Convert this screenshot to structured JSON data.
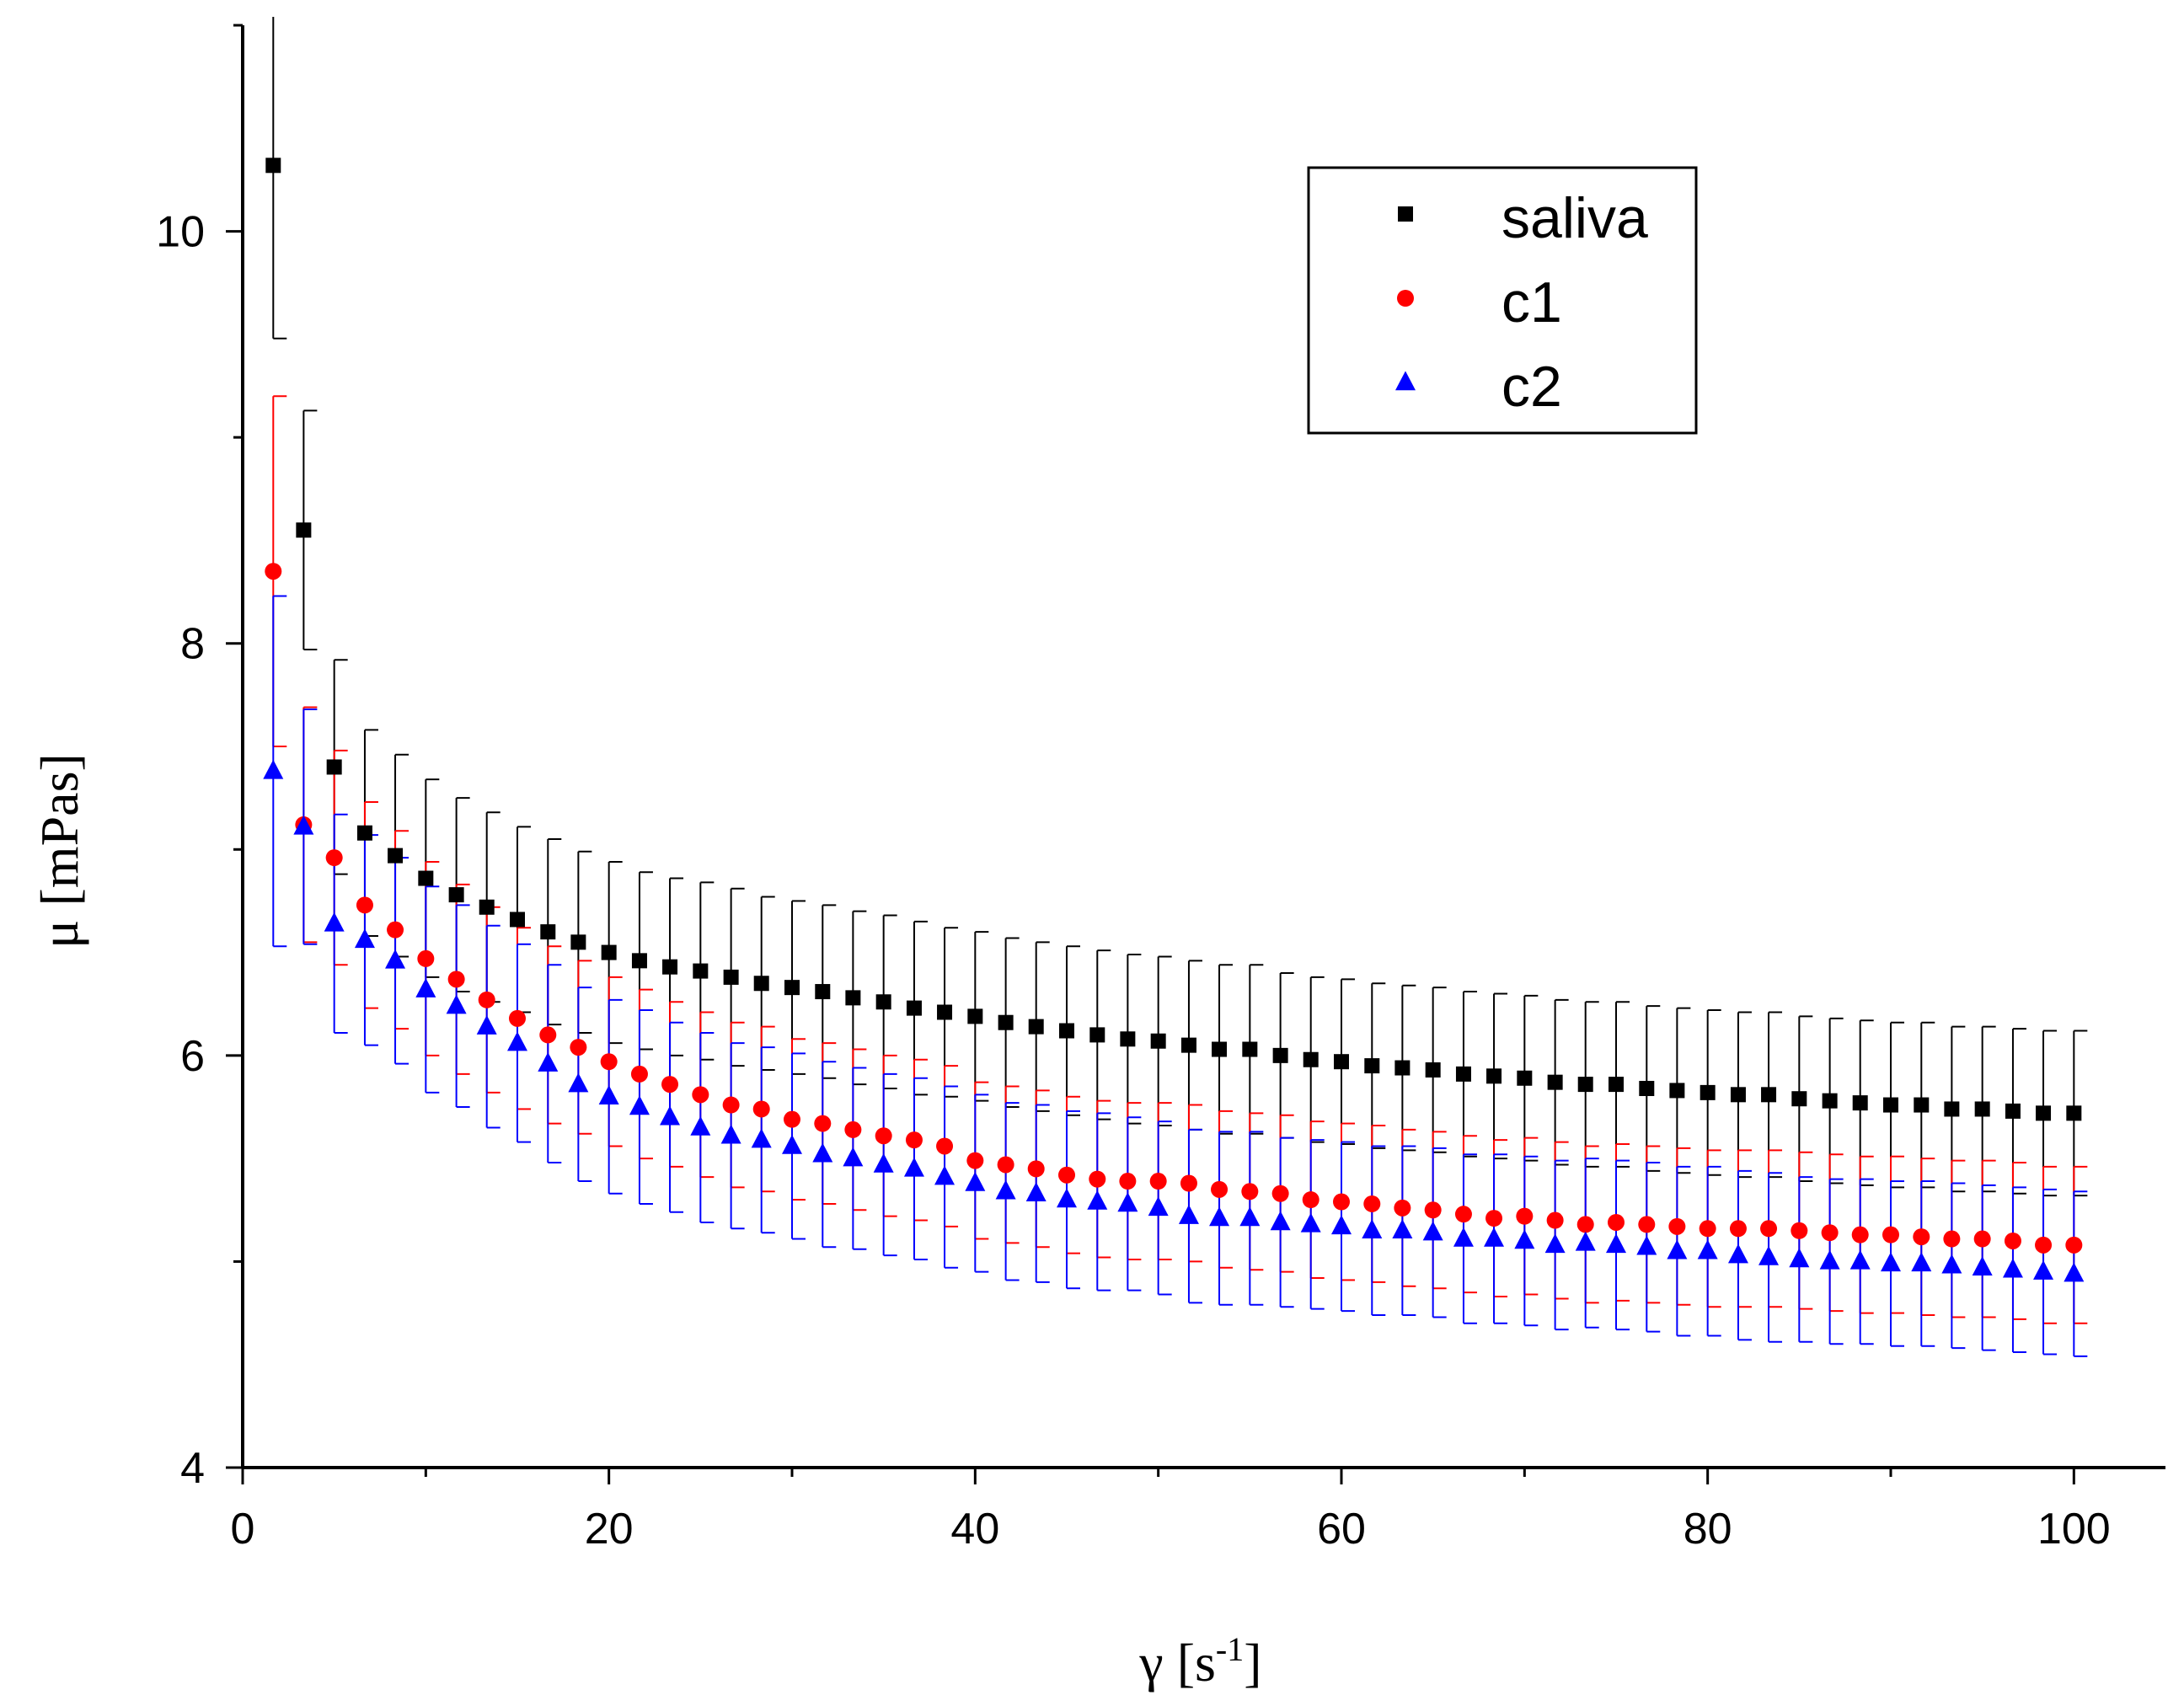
{
  "chart_data": {
    "type": "scatter",
    "title": "",
    "xlabel": {
      "symbol": "γ",
      "unit_open": " [s",
      "unit_sup": "-1",
      "unit_close": "]"
    },
    "ylabel": "μ [mPas]",
    "xlim": [
      0,
      105
    ],
    "ylim": [
      4,
      11
    ],
    "xticks": [
      0,
      20,
      40,
      60,
      80,
      100
    ],
    "yticks": [
      4,
      6,
      8,
      10
    ],
    "x_minor_step": 10,
    "y_minor_step": 1,
    "legend_position": "top-right",
    "x": [
      1.67,
      3.33,
      5.0,
      6.67,
      8.33,
      10.0,
      11.67,
      13.33,
      15.0,
      16.67,
      18.33,
      20.0,
      21.67,
      23.33,
      25.0,
      26.67,
      28.33,
      30.0,
      31.67,
      33.33,
      35.0,
      36.67,
      38.33,
      40.0,
      41.67,
      43.33,
      45.0,
      46.67,
      48.33,
      50.0,
      51.67,
      53.33,
      55.0,
      56.67,
      58.33,
      60.0,
      61.67,
      63.33,
      65.0,
      66.67,
      68.33,
      70.0,
      71.67,
      73.33,
      75.0,
      76.67,
      78.33,
      80.0,
      81.67,
      83.33,
      85.0,
      86.67,
      88.33,
      90.0,
      91.67,
      93.33,
      95.0,
      96.67,
      98.33,
      100.0
    ],
    "series": [
      {
        "name": "saliva",
        "marker": "square",
        "color": "#000000",
        "errorbar_color": "#000000",
        "values": [
          10.32,
          8.55,
          7.4,
          7.08,
          6.97,
          6.86,
          6.78,
          6.72,
          6.66,
          6.6,
          6.55,
          6.5,
          6.46,
          6.43,
          6.41,
          6.38,
          6.35,
          6.33,
          6.31,
          6.28,
          6.26,
          6.23,
          6.21,
          6.19,
          6.16,
          6.14,
          6.12,
          6.1,
          6.08,
          6.07,
          6.05,
          6.03,
          6.03,
          6.0,
          5.98,
          5.97,
          5.95,
          5.94,
          5.93,
          5.91,
          5.9,
          5.89,
          5.87,
          5.86,
          5.86,
          5.84,
          5.83,
          5.82,
          5.81,
          5.81,
          5.79,
          5.78,
          5.77,
          5.76,
          5.76,
          5.74,
          5.74,
          5.73,
          5.72,
          5.72
        ],
        "errors": [
          0.84,
          0.58,
          0.52,
          0.5,
          0.49,
          0.48,
          0.47,
          0.46,
          0.45,
          0.45,
          0.44,
          0.44,
          0.43,
          0.43,
          0.43,
          0.43,
          0.42,
          0.42,
          0.42,
          0.42,
          0.42,
          0.42,
          0.41,
          0.41,
          0.41,
          0.41,
          0.41,
          0.41,
          0.41,
          0.41,
          0.41,
          0.41,
          0.41,
          0.4,
          0.4,
          0.4,
          0.4,
          0.4,
          0.4,
          0.4,
          0.4,
          0.4,
          0.4,
          0.4,
          0.4,
          0.4,
          0.4,
          0.4,
          0.4,
          0.4,
          0.4,
          0.4,
          0.4,
          0.4,
          0.4,
          0.4,
          0.4,
          0.4,
          0.4,
          0.4
        ]
      },
      {
        "name": "c1",
        "marker": "circle",
        "color": "#ff0000",
        "errorbar_color": "#ff0000",
        "values": [
          8.35,
          7.12,
          6.96,
          6.73,
          6.61,
          6.47,
          6.37,
          6.27,
          6.18,
          6.1,
          6.04,
          5.97,
          5.91,
          5.86,
          5.81,
          5.76,
          5.74,
          5.69,
          5.67,
          5.64,
          5.61,
          5.59,
          5.56,
          5.49,
          5.47,
          5.45,
          5.42,
          5.4,
          5.39,
          5.39,
          5.38,
          5.35,
          5.34,
          5.33,
          5.3,
          5.29,
          5.28,
          5.26,
          5.25,
          5.23,
          5.21,
          5.22,
          5.2,
          5.18,
          5.19,
          5.18,
          5.17,
          5.16,
          5.16,
          5.16,
          5.15,
          5.14,
          5.13,
          5.13,
          5.12,
          5.11,
          5.11,
          5.1,
          5.08,
          5.08
        ],
        "errors": [
          0.85,
          0.57,
          0.52,
          0.5,
          0.48,
          0.47,
          0.46,
          0.45,
          0.44,
          0.43,
          0.42,
          0.41,
          0.41,
          0.4,
          0.4,
          0.4,
          0.4,
          0.39,
          0.39,
          0.39,
          0.39,
          0.39,
          0.39,
          0.38,
          0.38,
          0.38,
          0.38,
          0.38,
          0.38,
          0.38,
          0.38,
          0.38,
          0.38,
          0.38,
          0.38,
          0.38,
          0.38,
          0.38,
          0.38,
          0.38,
          0.38,
          0.38,
          0.38,
          0.38,
          0.38,
          0.38,
          0.38,
          0.38,
          0.38,
          0.38,
          0.38,
          0.38,
          0.38,
          0.38,
          0.38,
          0.38,
          0.38,
          0.38,
          0.38,
          0.38
        ]
      },
      {
        "name": "c2",
        "marker": "triangle",
        "color": "#0000ff",
        "errorbar_color": "#0000ff",
        "values": [
          7.38,
          7.11,
          6.64,
          6.56,
          6.46,
          6.32,
          6.24,
          6.14,
          6.06,
          5.96,
          5.86,
          5.8,
          5.75,
          5.7,
          5.65,
          5.61,
          5.59,
          5.56,
          5.52,
          5.5,
          5.47,
          5.45,
          5.41,
          5.38,
          5.34,
          5.33,
          5.3,
          5.29,
          5.28,
          5.26,
          5.22,
          5.21,
          5.21,
          5.19,
          5.18,
          5.17,
          5.15,
          5.15,
          5.14,
          5.11,
          5.11,
          5.1,
          5.08,
          5.09,
          5.08,
          5.07,
          5.05,
          5.05,
          5.03,
          5.02,
          5.01,
          5.0,
          5.0,
          4.99,
          4.99,
          4.98,
          4.97,
          4.96,
          4.95,
          4.94
        ],
        "errors": [
          0.85,
          0.57,
          0.53,
          0.51,
          0.5,
          0.5,
          0.49,
          0.49,
          0.48,
          0.48,
          0.47,
          0.47,
          0.47,
          0.46,
          0.46,
          0.45,
          0.45,
          0.45,
          0.45,
          0.44,
          0.44,
          0.44,
          0.44,
          0.43,
          0.43,
          0.43,
          0.43,
          0.43,
          0.42,
          0.42,
          0.42,
          0.42,
          0.42,
          0.41,
          0.41,
          0.41,
          0.41,
          0.41,
          0.41,
          0.41,
          0.41,
          0.41,
          0.41,
          0.41,
          0.41,
          0.41,
          0.41,
          0.41,
          0.41,
          0.41,
          0.4,
          0.4,
          0.4,
          0.4,
          0.4,
          0.4,
          0.4,
          0.4,
          0.4,
          0.4
        ]
      }
    ]
  }
}
